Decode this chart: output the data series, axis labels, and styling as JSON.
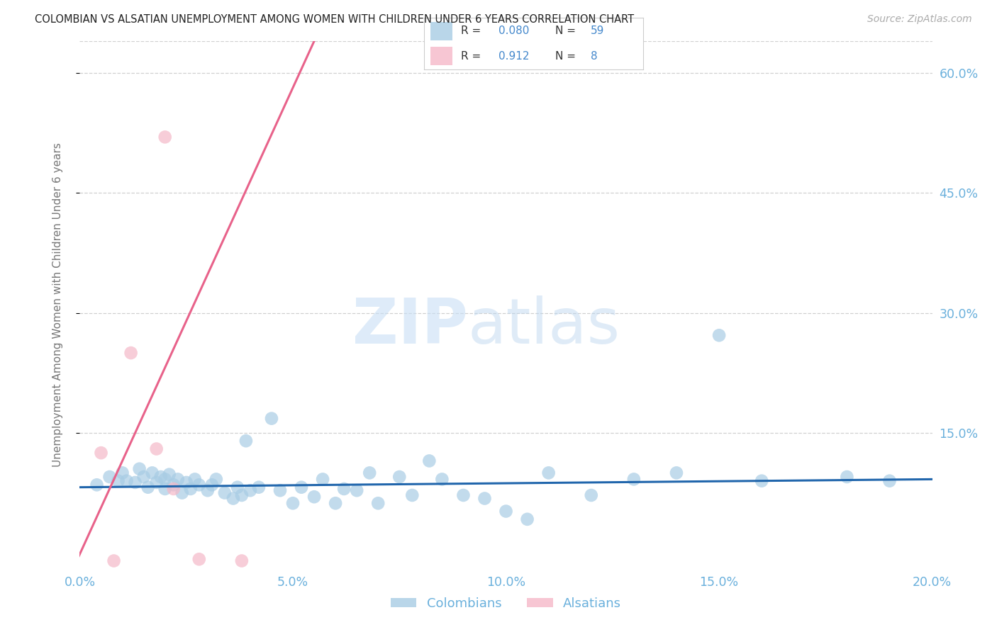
{
  "title": "COLOMBIAN VS ALSATIAN UNEMPLOYMENT AMONG WOMEN WITH CHILDREN UNDER 6 YEARS CORRELATION CHART",
  "source": "Source: ZipAtlas.com",
  "ylabel": "Unemployment Among Women with Children Under 6 years",
  "watermark_zip": "ZIP",
  "watermark_atlas": "atlas",
  "xlim": [
    0.0,
    0.2
  ],
  "ylim": [
    -0.02,
    0.64
  ],
  "xticks": [
    0.0,
    0.05,
    0.1,
    0.15,
    0.2
  ],
  "yticks": [
    0.15,
    0.3,
    0.45,
    0.6
  ],
  "ytick_labels": [
    "15.0%",
    "30.0%",
    "45.0%",
    "60.0%"
  ],
  "xtick_labels": [
    "0.0%",
    "5.0%",
    "10.0%",
    "15.0%",
    "20.0%"
  ],
  "colombian_R": "0.080",
  "colombian_N": "59",
  "alsatian_R": "0.912",
  "alsatian_N": "8",
  "blue_scatter_color": "#a8cce4",
  "pink_scatter_color": "#f5b8c8",
  "blue_line_color": "#2166ac",
  "pink_line_color": "#e8628a",
  "axis_tick_color": "#6ab0dc",
  "grid_color": "#d0d0d0",
  "legend_text_dark": "#333333",
  "legend_value_color": "#4488cc",
  "colombian_x": [
    0.004,
    0.007,
    0.009,
    0.01,
    0.011,
    0.013,
    0.014,
    0.015,
    0.016,
    0.017,
    0.018,
    0.019,
    0.02,
    0.02,
    0.021,
    0.022,
    0.023,
    0.024,
    0.025,
    0.026,
    0.027,
    0.028,
    0.03,
    0.031,
    0.032,
    0.034,
    0.036,
    0.037,
    0.038,
    0.039,
    0.04,
    0.042,
    0.045,
    0.047,
    0.05,
    0.052,
    0.055,
    0.057,
    0.06,
    0.062,
    0.065,
    0.068,
    0.07,
    0.075,
    0.078,
    0.082,
    0.085,
    0.09,
    0.095,
    0.1,
    0.105,
    0.11,
    0.12,
    0.13,
    0.14,
    0.15,
    0.16,
    0.18,
    0.19
  ],
  "colombian_y": [
    0.085,
    0.095,
    0.09,
    0.1,
    0.09,
    0.088,
    0.105,
    0.095,
    0.082,
    0.1,
    0.088,
    0.095,
    0.08,
    0.092,
    0.098,
    0.085,
    0.092,
    0.075,
    0.088,
    0.08,
    0.092,
    0.085,
    0.078,
    0.085,
    0.092,
    0.075,
    0.068,
    0.082,
    0.072,
    0.14,
    0.078,
    0.082,
    0.168,
    0.078,
    0.062,
    0.082,
    0.07,
    0.092,
    0.062,
    0.08,
    0.078,
    0.1,
    0.062,
    0.095,
    0.072,
    0.115,
    0.092,
    0.072,
    0.068,
    0.052,
    0.042,
    0.1,
    0.072,
    0.092,
    0.1,
    0.272,
    0.09,
    0.095,
    0.09
  ],
  "alsatian_x": [
    0.005,
    0.008,
    0.012,
    0.018,
    0.02,
    0.022,
    0.028,
    0.038
  ],
  "alsatian_y": [
    0.125,
    -0.01,
    0.25,
    0.13,
    0.52,
    0.08,
    -0.008,
    -0.01
  ],
  "colombian_trend_x": [
    0.0,
    0.2
  ],
  "colombian_trend_y": [
    0.082,
    0.092
  ],
  "alsatian_trend_x": [
    -0.002,
    0.055
  ],
  "alsatian_trend_y": [
    -0.025,
    0.64
  ]
}
